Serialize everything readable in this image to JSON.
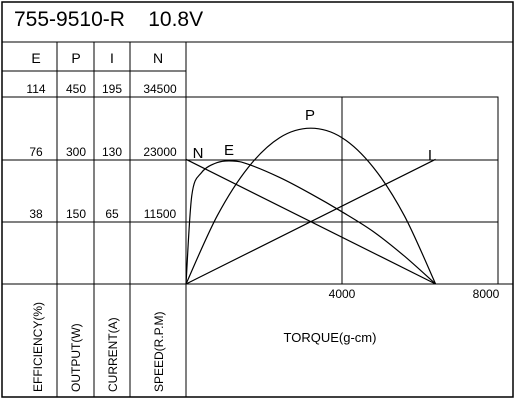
{
  "page_title": "755-9510-R    10.8V",
  "columns": [
    {
      "key": "E",
      "header": "E",
      "ticks": [
        "114",
        "76",
        "38"
      ],
      "axis_label": "EFFICIENCY(%)"
    },
    {
      "key": "P",
      "header": "P",
      "ticks": [
        "450",
        "300",
        "150"
      ],
      "axis_label": "OUTPUT(W)"
    },
    {
      "key": "I",
      "header": "I",
      "ticks": [
        "195",
        "130",
        "65"
      ],
      "axis_label": "CURRENT(A)"
    },
    {
      "key": "N",
      "header": "N",
      "ticks": [
        "34500",
        "23000",
        "11500"
      ],
      "axis_label": "SPEED(R.P.M)"
    }
  ],
  "chart_data": {
    "type": "line",
    "title": "755-9510-R    10.8V",
    "xlabel": "TORQUE(g-cm)",
    "x_ticks": [
      "4000",
      "8000"
    ],
    "xlim": [
      0,
      8000
    ],
    "grid": true,
    "series": [
      {
        "name": "N",
        "unit_axis": "SPEED(R.P.M)",
        "ylim": [
          0,
          34500
        ],
        "x": [
          0,
          6400
        ],
        "values": [
          23000,
          0
        ]
      },
      {
        "name": "I",
        "unit_axis": "CURRENT(A)",
        "ylim": [
          0,
          195
        ],
        "x": [
          0,
          6400
        ],
        "values": [
          0,
          130
        ]
      },
      {
        "name": "P",
        "unit_axis": "OUTPUT(W)",
        "ylim": [
          0,
          450
        ],
        "x": [
          0,
          800,
          1600,
          2400,
          3200,
          4000,
          4800,
          5600,
          6400
        ],
        "values": [
          0,
          164,
          281,
          352,
          375,
          352,
          281,
          164,
          0
        ]
      },
      {
        "name": "E",
        "unit_axis": "EFFICIENCY(%)",
        "ylim": [
          0,
          114
        ],
        "x": [
          0,
          150,
          400,
          800,
          1200,
          1600,
          2400,
          3200,
          4000,
          4800,
          5600,
          6400
        ],
        "values": [
          0,
          54,
          68,
          74,
          75,
          73,
          65,
          55,
          44,
          32,
          17,
          0
        ]
      }
    ]
  }
}
